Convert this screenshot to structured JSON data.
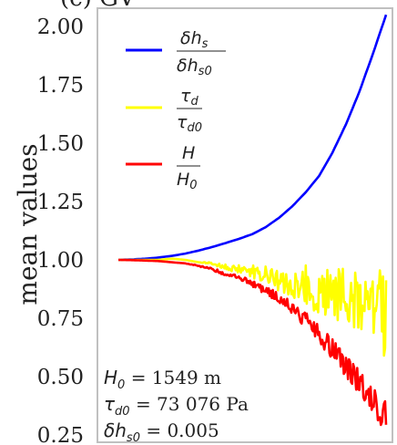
{
  "panel_label": "(c) GV",
  "chart_data": {
    "type": "line",
    "title": "(c) GV",
    "xlabel": "",
    "ylabel": "mean values",
    "ylim": [
      0.25,
      2.08
    ],
    "xlim": [
      0,
      1
    ],
    "yticks": [
      2.0,
      1.75,
      1.5,
      1.25,
      1.0,
      0.75,
      0.5,
      0.25
    ],
    "ytick_labels": [
      "2.00",
      "1.75",
      "1.50",
      "1.25",
      "1.00",
      "0.75",
      "0.50",
      "0.25"
    ],
    "grid": false,
    "legend_position": "top-left",
    "series": [
      {
        "name": "δh_s / δh_s0",
        "color": "#0000ff",
        "x": [
          0.0,
          0.05,
          0.1,
          0.15,
          0.2,
          0.25,
          0.3,
          0.35,
          0.4,
          0.45,
          0.5,
          0.55,
          0.6,
          0.65,
          0.7,
          0.75,
          0.8,
          0.85,
          0.9,
          0.95,
          1.0
        ],
        "values": [
          1.0,
          1.002,
          1.005,
          1.01,
          1.017,
          1.027,
          1.04,
          1.055,
          1.072,
          1.09,
          1.11,
          1.14,
          1.18,
          1.23,
          1.29,
          1.36,
          1.46,
          1.58,
          1.72,
          1.88,
          2.05
        ]
      },
      {
        "name": "τ_d / τ_d0",
        "color": "#ffff00",
        "x": [
          0.0,
          0.05,
          0.1,
          0.15,
          0.2,
          0.25,
          0.3,
          0.35,
          0.4,
          0.45,
          0.5,
          0.55,
          0.6,
          0.65,
          0.7,
          0.75,
          0.8,
          0.85,
          0.9,
          0.95,
          1.0
        ],
        "values": [
          1.0,
          1.0,
          1.0,
          1.0,
          1.005,
          1.0,
          0.99,
          0.985,
          0.97,
          0.96,
          0.95,
          0.93,
          0.92,
          0.9,
          0.89,
          0.87,
          0.86,
          0.84,
          0.83,
          0.8,
          0.78
        ],
        "amplitude": [
          0,
          0,
          0,
          0,
          0,
          0,
          0,
          0.005,
          0.01,
          0.02,
          0.03,
          0.045,
          0.06,
          0.075,
          0.09,
          0.1,
          0.11,
          0.12,
          0.14,
          0.17,
          0.2
        ]
      },
      {
        "name": "H / H_0",
        "color": "#ff0000",
        "x": [
          0.0,
          0.05,
          0.1,
          0.15,
          0.2,
          0.25,
          0.3,
          0.35,
          0.4,
          0.45,
          0.5,
          0.55,
          0.6,
          0.65,
          0.7,
          0.75,
          0.8,
          0.85,
          0.9,
          0.95,
          1.0
        ],
        "values": [
          1.0,
          0.999,
          0.997,
          0.995,
          0.99,
          0.985,
          0.975,
          0.96,
          0.94,
          0.92,
          0.9,
          0.87,
          0.83,
          0.79,
          0.74,
          0.68,
          0.62,
          0.55,
          0.48,
          0.4,
          0.33
        ],
        "amplitude": [
          0,
          0,
          0,
          0,
          0,
          0,
          0.003,
          0.005,
          0.008,
          0.012,
          0.015,
          0.02,
          0.025,
          0.03,
          0.035,
          0.04,
          0.045,
          0.05,
          0.055,
          0.06,
          0.07
        ]
      }
    ],
    "annotations": {
      "H0": "= 1549 m",
      "tau_d0": "= 73 076 Pa",
      "dhs0": "= 0.005"
    }
  }
}
